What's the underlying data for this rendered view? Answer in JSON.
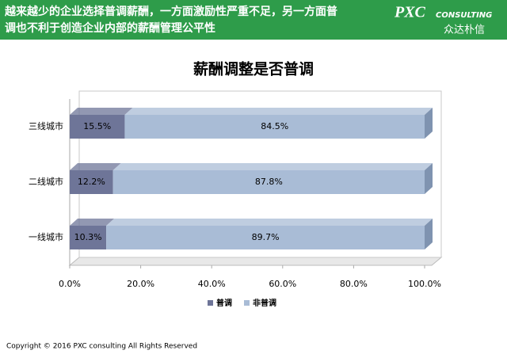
{
  "header": {
    "lines": [
      "越来越少的企业选择普调薪酬，一方面激励性严重不足，另一方面普",
      "调也不利于创造企业内部的薪酬管理公平性"
    ],
    "logo": {
      "brand": "PXC",
      "sub": "CONSULTING",
      "cn": "众达朴信"
    }
  },
  "chart_data": {
    "type": "bar",
    "orientation": "horizontal",
    "stacked": true,
    "title": "薪酬调整是否普调",
    "categories": [
      "一线城市",
      "二线城市",
      "三线城市"
    ],
    "series": [
      {
        "name": "普调",
        "color": "#6e7598",
        "values": [
          10.3,
          12.2,
          15.5
        ],
        "value_labels": [
          "10.3%",
          "12.2%",
          "15.5%"
        ]
      },
      {
        "name": "非普调",
        "color": "#a9bcd6",
        "values": [
          89.7,
          87.8,
          84.5
        ],
        "value_labels": [
          "89.7%",
          "87.8%",
          "84.5%"
        ]
      }
    ],
    "xlim": [
      0,
      100
    ],
    "xticks": [
      {
        "value": 0,
        "label": "0.0%"
      },
      {
        "value": 20,
        "label": "20.0%"
      },
      {
        "value": 40,
        "label": "40.0%"
      },
      {
        "value": 60,
        "label": "60.0%"
      },
      {
        "value": 80,
        "label": "80.0%"
      },
      {
        "value": 100,
        "label": "100.0%"
      }
    ],
    "grid": false,
    "legend": "bottom"
  },
  "footer": "Copyright © 2016  PXC consulting All Rights Reserved"
}
